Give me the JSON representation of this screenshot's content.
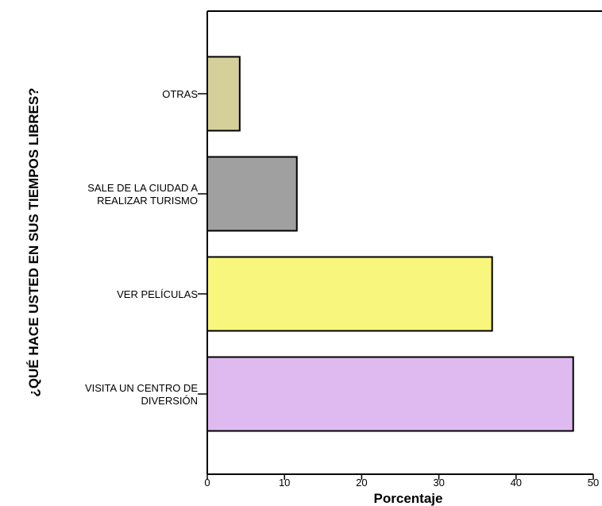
{
  "chart_data": {
    "type": "bar",
    "orientation": "horizontal",
    "categories": [
      [
        "VISITA UN CENTRO DE",
        "DIVERSIÓN"
      ],
      [
        "VER PELÍCULAS"
      ],
      [
        "SALE DE LA CIUDAD A",
        "REALIZAR TURISMO"
      ],
      [
        "OTRAS"
      ]
    ],
    "values": [
      47.4,
      36.9,
      11.6,
      4.2
    ],
    "colors": [
      "#dfbaf1",
      "#f8f67d",
      "#a0a0a0",
      "#d5d09a"
    ],
    "xlabel": "Porcentaje",
    "ylabel": "¿QUÉ HACE USTED EN SUS TIEMPOS LIBRES?",
    "xlim": [
      0,
      50
    ],
    "xticks": [
      0,
      10,
      20,
      30,
      40,
      50
    ],
    "grid": false,
    "legend": "none"
  }
}
